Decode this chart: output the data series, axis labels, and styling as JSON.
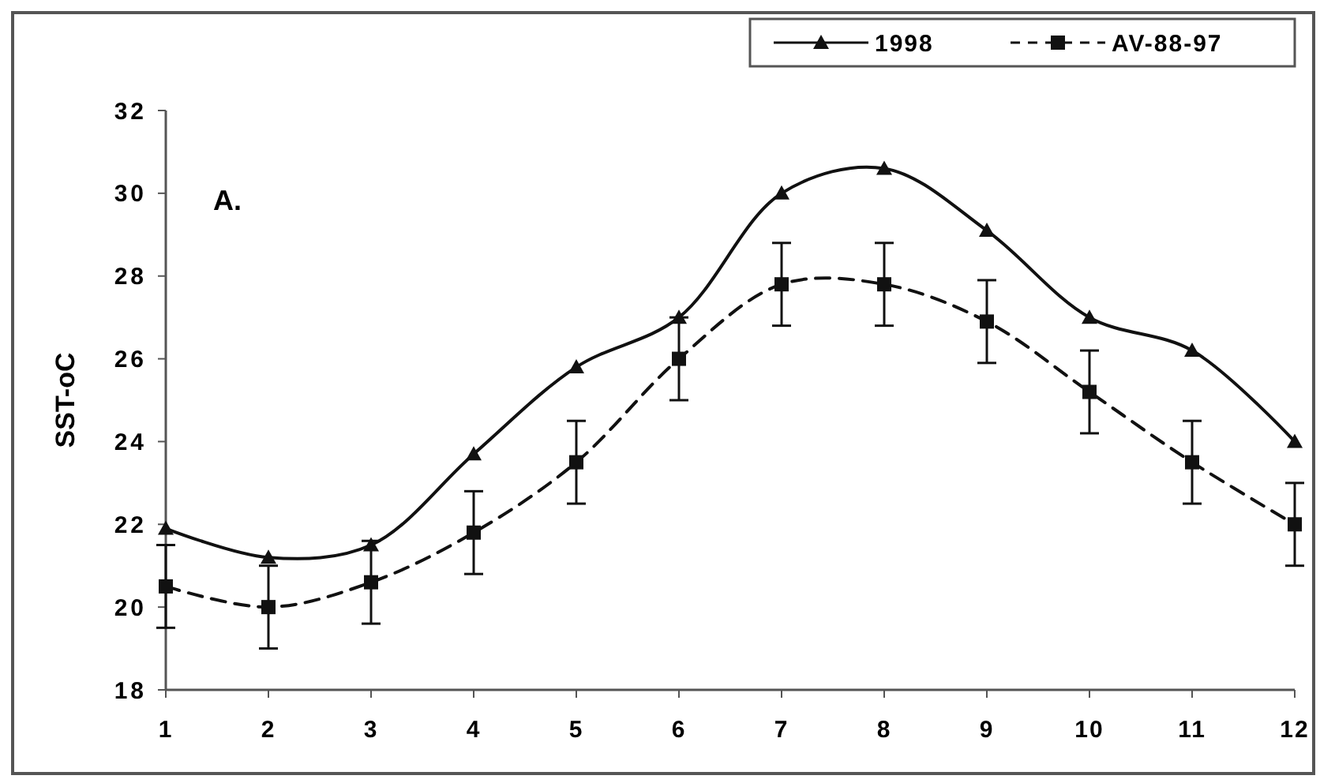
{
  "chart_data": {
    "type": "line",
    "ylabel": "SST-oC",
    "annotations": [
      "A."
    ],
    "x": [
      1,
      2,
      3,
      4,
      5,
      6,
      7,
      8,
      9,
      10,
      11,
      12
    ],
    "xlim": [
      1,
      12
    ],
    "xticks": [
      1,
      2,
      3,
      4,
      5,
      6,
      7,
      8,
      9,
      10,
      11,
      12
    ],
    "ylim": [
      18,
      32
    ],
    "yticks": [
      18,
      20,
      22,
      24,
      26,
      28,
      30,
      32
    ],
    "series": [
      {
        "name": "1998",
        "color": "#111111",
        "marker": "triangle",
        "line_style": "solid",
        "values": [
          21.9,
          21.2,
          21.5,
          23.7,
          25.8,
          27.0,
          30.0,
          30.6,
          29.1,
          27.0,
          26.2,
          24.0
        ]
      },
      {
        "name": "AV-88-97",
        "color": "#111111",
        "marker": "square",
        "line_style": "dashed",
        "values": [
          20.5,
          20.0,
          20.6,
          21.8,
          23.5,
          26.0,
          27.8,
          27.8,
          26.9,
          25.2,
          23.5,
          22.0
        ],
        "errors": [
          1,
          1,
          1,
          1,
          1,
          1,
          1,
          1,
          1,
          1,
          1,
          1
        ]
      }
    ],
    "legend": "top right",
    "grid": false
  }
}
